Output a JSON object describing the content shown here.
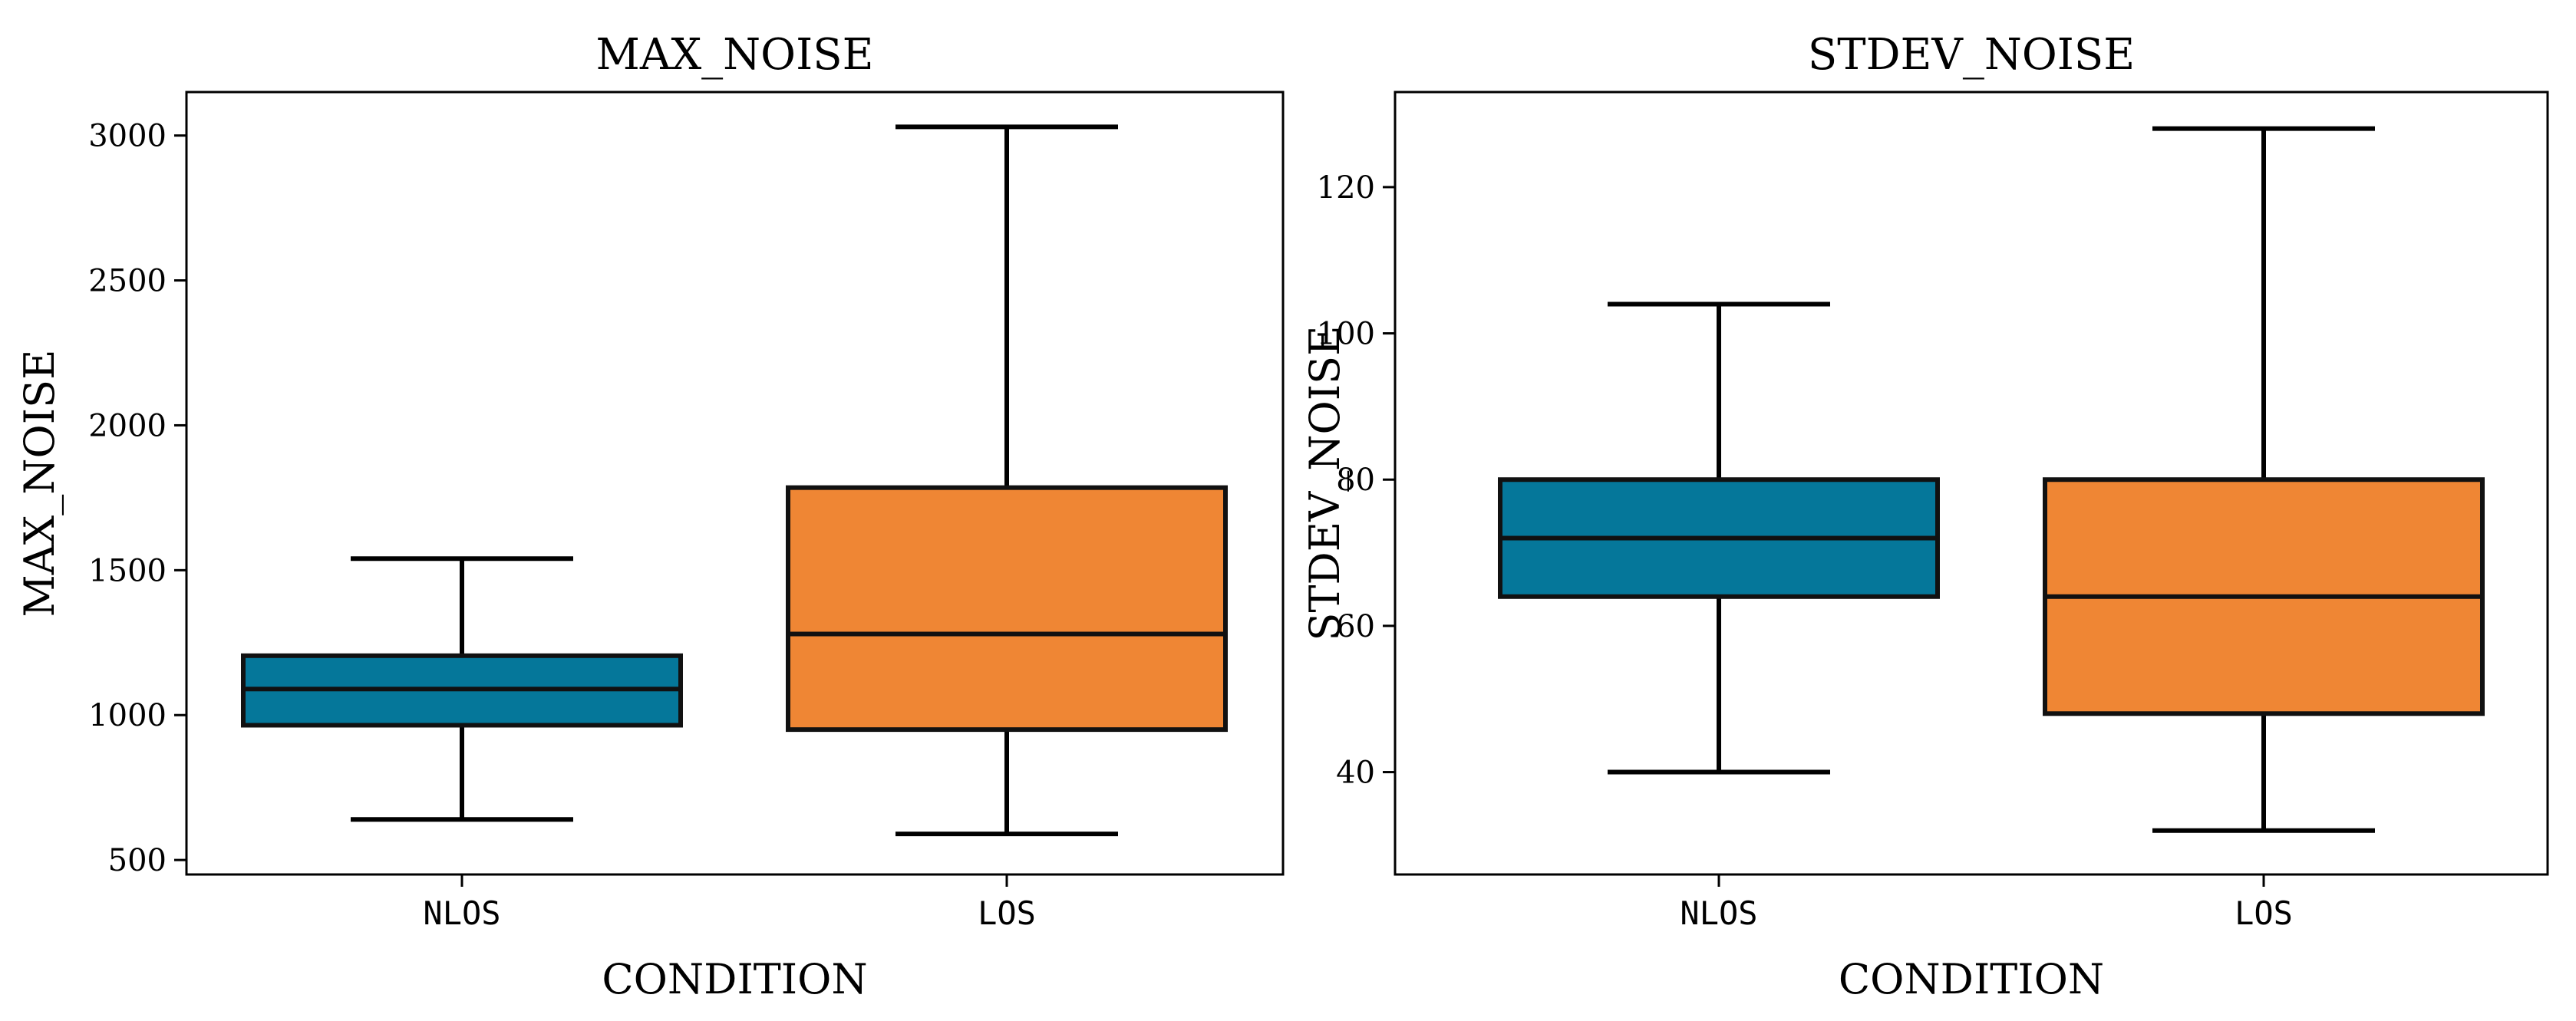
{
  "chart_data": [
    {
      "type": "box",
      "title": "MAX_NOISE",
      "xlabel": "CONDITION",
      "ylabel": "MAX_NOISE",
      "categories": [
        "NLOS",
        "LOS"
      ],
      "ylim": [
        450,
        3150
      ],
      "yticks": [
        500,
        1000,
        1500,
        2000,
        2500,
        3000
      ],
      "grid": false,
      "boxes": [
        {
          "category": "NLOS",
          "whisker_low": 640,
          "q1": 965,
          "median": 1090,
          "q3": 1205,
          "whisker_high": 1540,
          "color": "#05779a"
        },
        {
          "category": "LOS",
          "whisker_low": 590,
          "q1": 950,
          "median": 1280,
          "q3": 1785,
          "whisker_high": 3030,
          "color": "#ef8634"
        }
      ]
    },
    {
      "type": "box",
      "title": "STDEV_NOISE",
      "xlabel": "CONDITION",
      "ylabel": "STDEV_NOISE",
      "categories": [
        "NLOS",
        "LOS"
      ],
      "ylim": [
        26,
        133
      ],
      "yticks": [
        40,
        60,
        80,
        100,
        120
      ],
      "grid": false,
      "boxes": [
        {
          "category": "NLOS",
          "whisker_low": 40,
          "q1": 64,
          "median": 72,
          "q3": 80,
          "whisker_high": 104,
          "color": "#05779a"
        },
        {
          "category": "LOS",
          "whisker_low": 32,
          "q1": 48,
          "median": 64,
          "q3": 80,
          "whisker_high": 128,
          "color": "#ef8634"
        }
      ]
    }
  ]
}
